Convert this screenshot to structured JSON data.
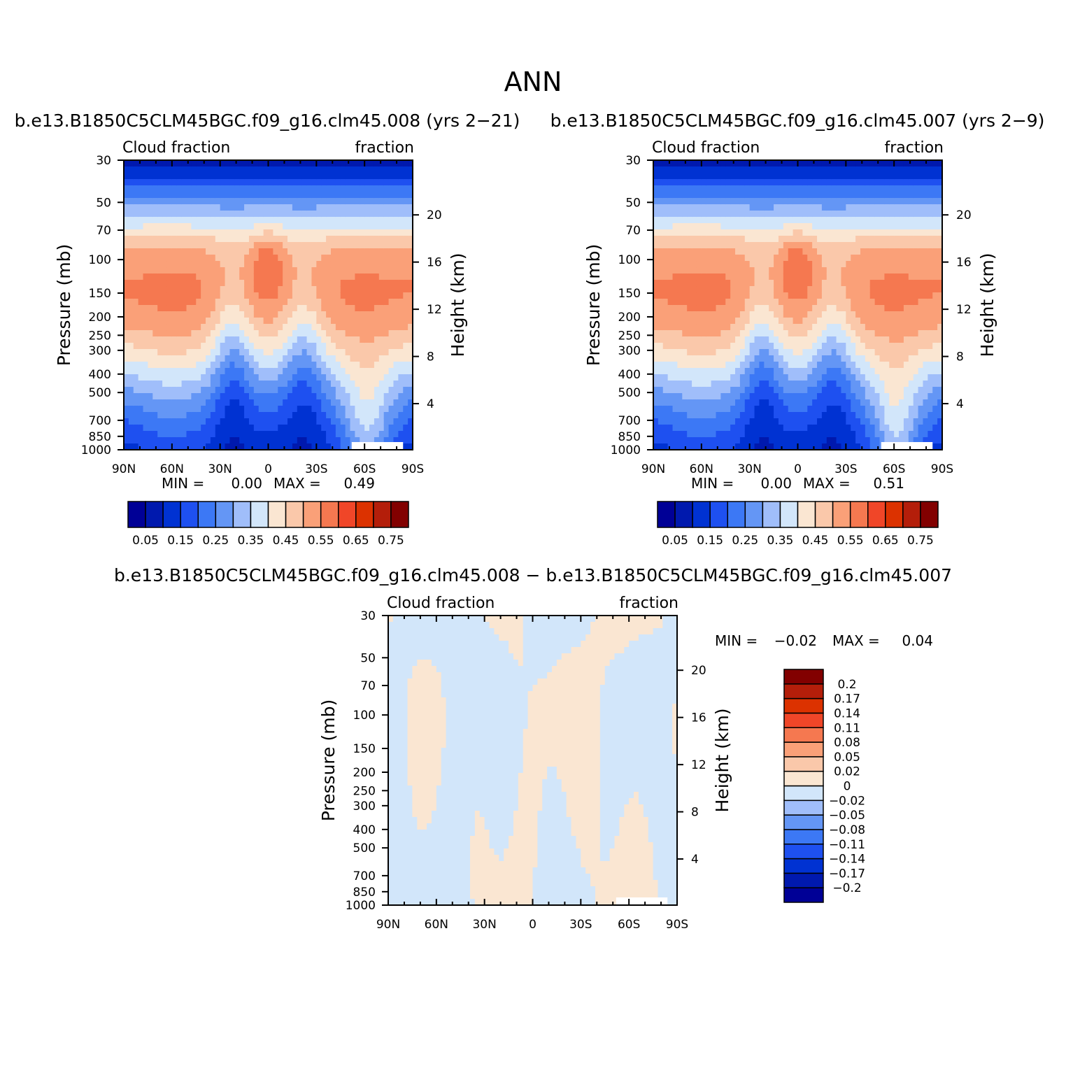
{
  "page_title": "ANN",
  "chart_data": [
    {
      "type": "heatmap",
      "title": "b.e13.B1850C5CLM45BGC.f09_g16.clm45.008 (yrs 2-21)",
      "left_string": "Cloud fraction",
      "right_string": "fraction",
      "xlabel": "",
      "ylabel": "Pressure (mb)",
      "y2label": "Height (km)",
      "x_ticks": [
        "90N",
        "60N",
        "30N",
        "0",
        "30S",
        "60S",
        "90S"
      ],
      "y_ticks": [
        "30",
        "50",
        "70",
        "100",
        "150",
        "200",
        "250",
        "300",
        "400",
        "500",
        "700",
        "850",
        "1000"
      ],
      "y2_ticks": [
        "20",
        "16",
        "12",
        "8",
        "4"
      ],
      "ylim": [
        1000,
        30
      ],
      "scale": "log-pressure",
      "min_text": "MIN =",
      "min_value": "0.00",
      "max_text": "MAX =",
      "max_value": "0.49",
      "colorbar": {
        "orientation": "horizontal",
        "colors": [
          "#000096",
          "#0019AE",
          "#0032D2",
          "#1E50F0",
          "#3C78F5",
          "#6496F5",
          "#A0BEFA",
          "#D2E6FA",
          "#FAE6D2",
          "#FAC8AA",
          "#FAA078",
          "#F57850",
          "#F04628",
          "#DC3200",
          "#B41E0A",
          "#820000"
        ],
        "labels": [
          "0.05",
          "0.15",
          "0.25",
          "0.35",
          "0.45",
          "0.55",
          "0.65",
          "0.75"
        ]
      }
    },
    {
      "type": "heatmap",
      "title": "b.e13.B1850C5CLM45BGC.f09_g16.clm45.007 (yrs 2-9)",
      "left_string": "Cloud fraction",
      "right_string": "fraction",
      "xlabel": "",
      "ylabel": "Pressure (mb)",
      "y2label": "Height (km)",
      "x_ticks": [
        "90N",
        "60N",
        "30N",
        "0",
        "30S",
        "60S",
        "90S"
      ],
      "y_ticks": [
        "30",
        "50",
        "70",
        "100",
        "150",
        "200",
        "250",
        "300",
        "400",
        "500",
        "700",
        "850",
        "1000"
      ],
      "y2_ticks": [
        "20",
        "16",
        "12",
        "8",
        "4"
      ],
      "ylim": [
        1000,
        30
      ],
      "scale": "log-pressure",
      "min_text": "MIN =",
      "min_value": "0.00",
      "max_text": "MAX =",
      "max_value": "0.51",
      "colorbar": {
        "orientation": "horizontal",
        "colors": [
          "#000096",
          "#0019AE",
          "#0032D2",
          "#1E50F0",
          "#3C78F5",
          "#6496F5",
          "#A0BEFA",
          "#D2E6FA",
          "#FAE6D2",
          "#FAC8AA",
          "#FAA078",
          "#F57850",
          "#F04628",
          "#DC3200",
          "#B41E0A",
          "#820000"
        ],
        "labels": [
          "0.05",
          "0.15",
          "0.25",
          "0.35",
          "0.45",
          "0.55",
          "0.65",
          "0.75"
        ]
      }
    },
    {
      "type": "heatmap",
      "title": "b.e13.B1850C5CLM45BGC.f09_g16.clm45.008 - b.e13.B1850C5CLM45BGC.f09_g16.clm45.007",
      "left_string": "Cloud fraction",
      "right_string": "fraction",
      "xlabel": "",
      "ylabel": "Pressure (mb)",
      "y2label": "Height (km)",
      "x_ticks": [
        "90N",
        "60N",
        "30N",
        "0",
        "30S",
        "60S",
        "90S"
      ],
      "y_ticks": [
        "30",
        "50",
        "70",
        "100",
        "150",
        "200",
        "250",
        "300",
        "400",
        "500",
        "700",
        "850",
        "1000"
      ],
      "y2_ticks": [
        "20",
        "16",
        "12",
        "8",
        "4"
      ],
      "ylim": [
        1000,
        30
      ],
      "scale": "log-pressure",
      "min_text": "MIN =",
      "min_value": "-0.02",
      "max_text": "MAX =",
      "max_value": "0.04",
      "colorbar": {
        "orientation": "vertical",
        "colors": [
          "#000096",
          "#0019AE",
          "#0032D2",
          "#1E50F0",
          "#3C78F5",
          "#6496F5",
          "#A0BEFA",
          "#D2E6FA",
          "#FAE6D2",
          "#FAC8AA",
          "#FAA078",
          "#F57850",
          "#F04628",
          "#DC3200",
          "#B41E0A",
          "#820000"
        ],
        "labels": [
          "-0.2",
          "-0.17",
          "-0.14",
          "-0.11",
          "-0.08",
          "-0.05",
          "-0.02",
          "0",
          "0.02",
          "0.05",
          "0.08",
          "0.11",
          "0.14",
          "0.17",
          "0.2"
        ]
      }
    }
  ]
}
